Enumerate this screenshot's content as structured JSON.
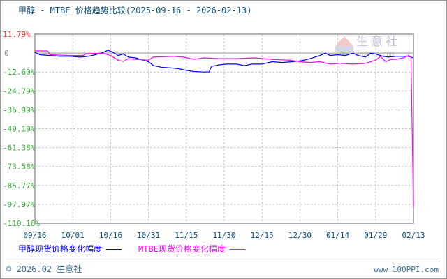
{
  "title": "甲醇 - MTBE 价格趋势比较(2025-09-16 - 2026-02-13)",
  "watermark": {
    "cn": "生意社",
    "en": "100PPI.COM",
    "logo": "PPI"
  },
  "footer": {
    "copyright": "© 2026.02 生意社",
    "url": "www.100PPI.com"
  },
  "colors": {
    "methanol": "#0000ff",
    "mtbe": "#ff00ff",
    "top_label": "#ff3333",
    "zero_label": "#888888",
    "neg_label": "#33aa33",
    "grid": "#c8c8c8"
  },
  "chart_data": {
    "type": "line",
    "title": "甲醇 - MTBE 价格趋势比较(2025-09-16 - 2026-02-13)",
    "xlim": [
      "2025-09-16",
      "2026-02-13"
    ],
    "ylim": [
      -110.16,
      11.79
    ],
    "y_ticks": [
      "11.79%",
      "0",
      "-12.60%",
      "-24.79%",
      "-36.99%",
      "-49.19%",
      "-61.38%",
      "-73.58%",
      "-85.77%",
      "-97.97%",
      "-110.16%"
    ],
    "y_tick_values": [
      11.79,
      0,
      -12.6,
      -24.79,
      -36.99,
      -49.19,
      -61.38,
      -73.58,
      -85.77,
      -97.97,
      -110.16
    ],
    "x_ticks": [
      "09/16",
      "10/01",
      "10/16",
      "10/31",
      "11/15",
      "11/30",
      "12/15",
      "12/30",
      "01/14",
      "01/29",
      "02/13"
    ],
    "grid": true,
    "legend": "bottom",
    "series": [
      {
        "name": "甲醇现货价格变化幅度",
        "color": "#0000ff",
        "points": [
          [
            "2025-09-16",
            0
          ],
          [
            "2025-09-18",
            -1.5
          ],
          [
            "2025-09-22",
            -2
          ],
          [
            "2025-09-26",
            -2.5
          ],
          [
            "2025-09-30",
            -2.5
          ],
          [
            "2025-10-04",
            -3
          ],
          [
            "2025-10-07",
            -2.5
          ],
          [
            "2025-10-10",
            -1.5
          ],
          [
            "2025-10-13",
            0
          ],
          [
            "2025-10-15",
            1.5
          ],
          [
            "2025-10-17",
            0
          ],
          [
            "2025-10-19",
            -2
          ],
          [
            "2025-10-21",
            -1
          ],
          [
            "2025-10-23",
            -3
          ],
          [
            "2025-10-26",
            -3.5
          ],
          [
            "2025-10-29",
            -5
          ],
          [
            "2025-10-31",
            -6
          ],
          [
            "2025-11-02",
            -8.5
          ],
          [
            "2025-11-05",
            -9.5
          ],
          [
            "2025-11-09",
            -10
          ],
          [
            "2025-11-12",
            -10.5
          ],
          [
            "2025-11-15",
            -11.5
          ],
          [
            "2025-11-18",
            -12.3
          ],
          [
            "2025-11-22",
            -12.6
          ],
          [
            "2025-11-24",
            -12.5
          ],
          [
            "2025-11-25",
            -9
          ],
          [
            "2025-11-28",
            -8
          ],
          [
            "2025-12-01",
            -7.5
          ],
          [
            "2025-12-05",
            -7.5
          ],
          [
            "2025-12-08",
            -8.5
          ],
          [
            "2025-12-11",
            -7.5
          ],
          [
            "2025-12-15",
            -7.5
          ],
          [
            "2025-12-19",
            -6
          ],
          [
            "2025-12-23",
            -6.5
          ],
          [
            "2025-12-27",
            -6
          ],
          [
            "2025-12-30",
            -5.5
          ],
          [
            "2026-01-02",
            -4.5
          ],
          [
            "2026-01-05",
            -3
          ],
          [
            "2026-01-07",
            -2
          ],
          [
            "2026-01-09",
            -0.5
          ],
          [
            "2026-01-11",
            -2
          ],
          [
            "2026-01-14",
            -1.5
          ],
          [
            "2026-01-17",
            -2
          ],
          [
            "2026-01-20",
            -0.5
          ],
          [
            "2026-01-22",
            -2
          ],
          [
            "2026-01-25",
            -3
          ],
          [
            "2026-01-27",
            -0.5
          ],
          [
            "2026-01-29",
            -1
          ],
          [
            "2026-02-01",
            -2.5
          ],
          [
            "2026-02-03",
            -3
          ],
          [
            "2026-02-06",
            -2.5
          ],
          [
            "2026-02-09",
            -2.5
          ],
          [
            "2026-02-11",
            -2.5
          ],
          [
            "2026-02-13",
            -3.5
          ]
        ]
      },
      {
        "name": "MTBE现货价格变化幅度",
        "color": "#ff00ff",
        "points": [
          [
            "2025-09-16",
            1
          ],
          [
            "2025-09-21",
            1
          ],
          [
            "2025-09-22",
            -1.5
          ],
          [
            "2025-09-30",
            -2
          ],
          [
            "2025-10-05",
            -2
          ],
          [
            "2025-10-06",
            -1
          ],
          [
            "2025-10-12",
            -0.5
          ],
          [
            "2025-10-14",
            -1
          ],
          [
            "2025-10-16",
            -2
          ],
          [
            "2025-10-19",
            -5
          ],
          [
            "2025-10-21",
            -5.8
          ],
          [
            "2025-10-23",
            -4
          ],
          [
            "2025-10-26",
            -4.5
          ],
          [
            "2025-10-31",
            -5
          ],
          [
            "2025-11-02",
            -3
          ],
          [
            "2025-11-10",
            -2.5
          ],
          [
            "2025-11-14",
            -3
          ],
          [
            "2025-11-18",
            -4.5
          ],
          [
            "2025-11-22",
            -3.5
          ],
          [
            "2025-11-28",
            -4
          ],
          [
            "2025-12-05",
            -4
          ],
          [
            "2025-12-12",
            -3.5
          ],
          [
            "2025-12-19",
            -4.5
          ],
          [
            "2025-12-26",
            -5
          ],
          [
            "2025-12-30",
            -6
          ],
          [
            "2026-01-03",
            -6.5
          ],
          [
            "2026-01-07",
            -6
          ],
          [
            "2026-01-11",
            -7.5
          ],
          [
            "2026-01-15",
            -7
          ],
          [
            "2026-01-20",
            -7.5
          ],
          [
            "2026-01-25",
            -7
          ],
          [
            "2026-01-29",
            -5
          ],
          [
            "2026-01-31",
            -2.5
          ],
          [
            "2026-02-02",
            -6
          ],
          [
            "2026-02-04",
            -4.5
          ],
          [
            "2026-02-06",
            -4.5
          ],
          [
            "2026-02-09",
            -3.5
          ],
          [
            "2026-02-11",
            -2
          ],
          [
            "2026-02-12",
            -3
          ],
          [
            "2026-02-13",
            -99.8
          ]
        ]
      }
    ]
  }
}
